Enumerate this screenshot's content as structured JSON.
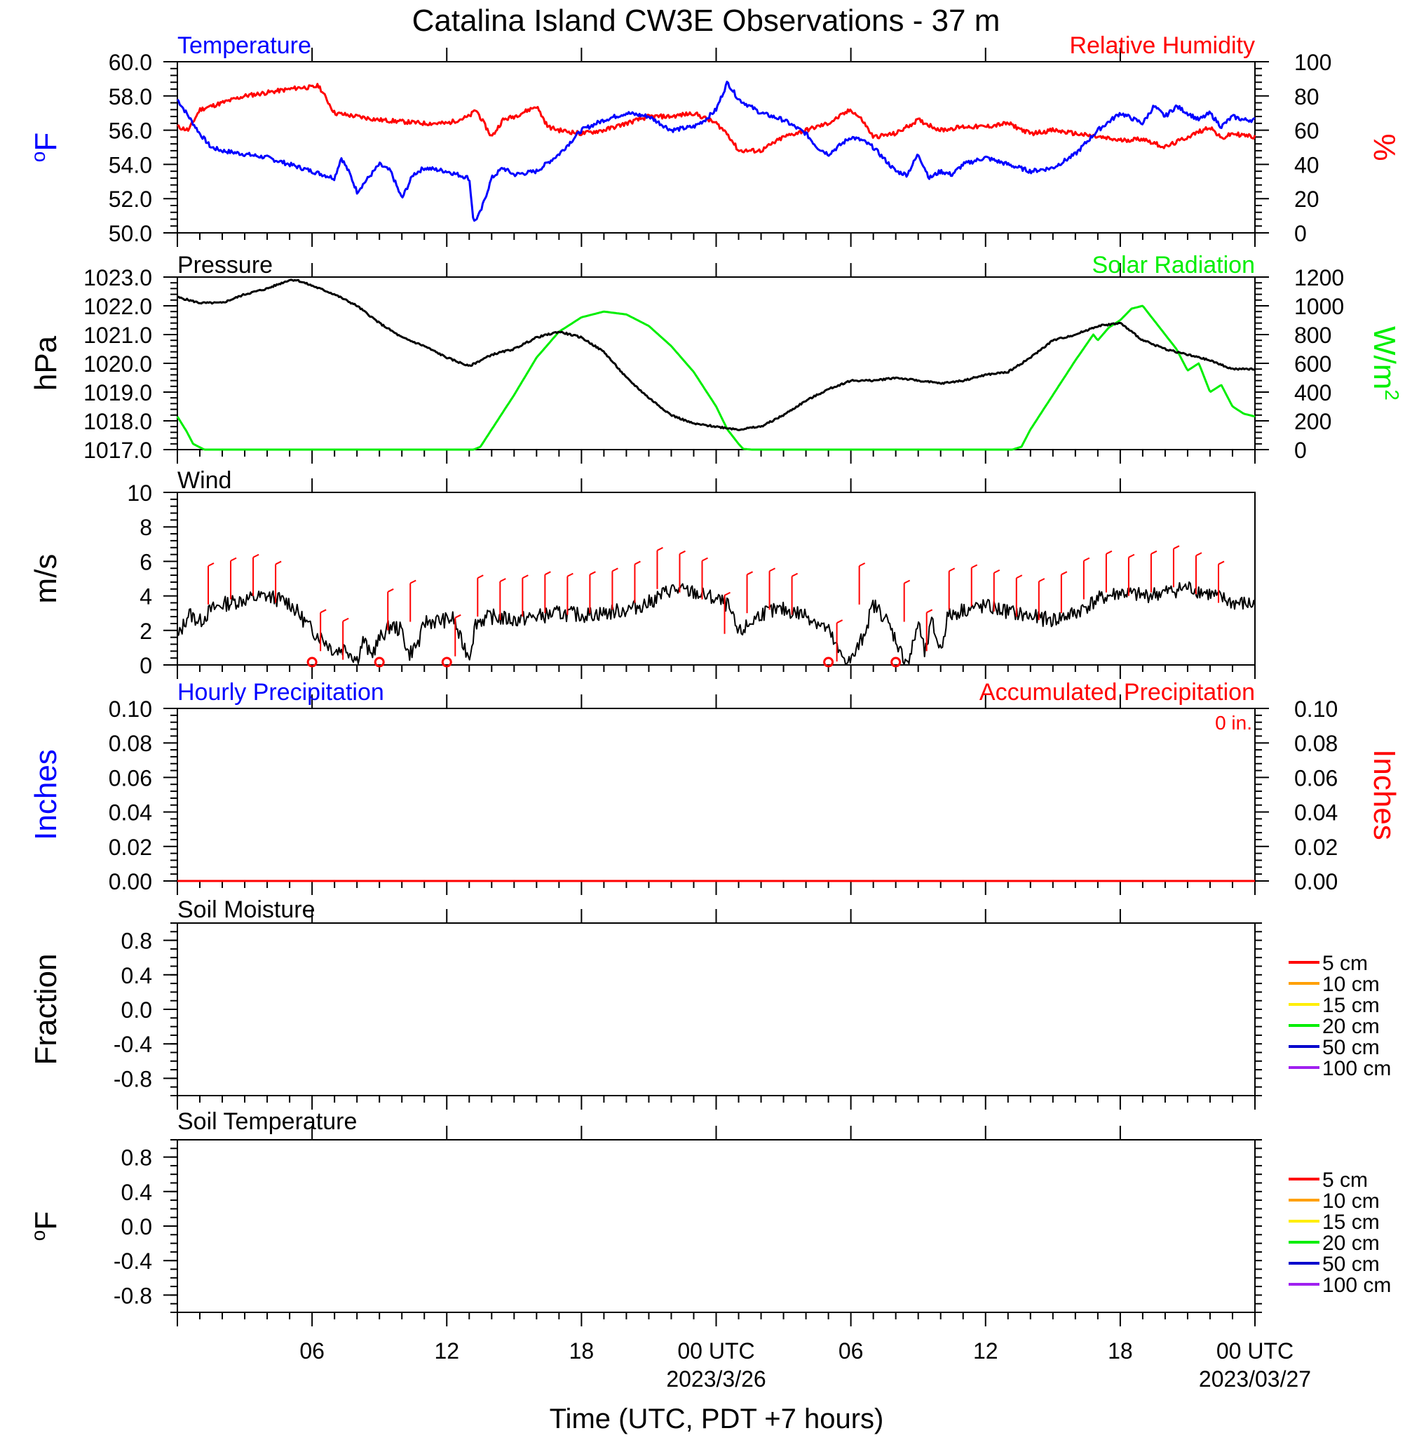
{
  "title": "Catalina Island CW3E Observations - 37 m",
  "xlabel": "Time (UTC, PDT +7 hours)",
  "x_ticks": [
    {
      "hour": 6,
      "label": "06",
      "date": ""
    },
    {
      "hour": 12,
      "label": "12",
      "date": ""
    },
    {
      "hour": 18,
      "label": "18",
      "date": ""
    },
    {
      "hour": 24,
      "label": "00 UTC",
      "date": "2023/3/26"
    },
    {
      "hour": 30,
      "label": "06",
      "date": ""
    },
    {
      "hour": 36,
      "label": "12",
      "date": ""
    },
    {
      "hour": 42,
      "label": "18",
      "date": ""
    },
    {
      "hour": 48,
      "label": "00 UTC",
      "date": "2023/03/27"
    }
  ],
  "colors": {
    "temperature": "#0000ff",
    "humidity": "#ff0000",
    "pressure": "#000000",
    "solar": "#00ee00",
    "wind_speed": "#000000",
    "wind_barb": "#ff0000",
    "hourly_precip": "#0000ff",
    "accum_precip": "#ff0000",
    "soil_5": "#ff0000",
    "soil_10": "#ffa000",
    "soil_15": "#ffee00",
    "soil_20": "#00ee00",
    "soil_50": "#0000cc",
    "soil_100": "#a020f0"
  },
  "chart_data": [
    {
      "type": "line",
      "panel": "temperature-humidity",
      "title_left": "Temperature",
      "title_right": "Relative Humidity",
      "ylabel_left": "oF",
      "ylabel_right": "%",
      "ylim_left": [
        50,
        60
      ],
      "ylim_right": [
        0,
        100
      ],
      "yticks_left": [
        "60.0",
        "58.0",
        "56.0",
        "54.0",
        "52.0",
        "50.0"
      ],
      "yticks_right": [
        "100",
        "80",
        "60",
        "40",
        "20",
        "0"
      ],
      "x_range": [
        0,
        48
      ],
      "series": [
        {
          "name": "Temperature",
          "axis": "left",
          "x": [
            0,
            0.5,
            1,
            1.5,
            2,
            3,
            4,
            5,
            6,
            6.5,
            7,
            7.3,
            7.7,
            8,
            8.5,
            9,
            9.5,
            10,
            10.5,
            11,
            12,
            12.5,
            13,
            13.2,
            13.5,
            14,
            14.5,
            15,
            16,
            17,
            18,
            19,
            20,
            21,
            22,
            23,
            23.5,
            24,
            24.5,
            25,
            25.5,
            26,
            27,
            28,
            28.5,
            29,
            30,
            30.5,
            31,
            32,
            32.5,
            33,
            33.5,
            34,
            34.5,
            35,
            36,
            37,
            38,
            39,
            40,
            41,
            42,
            43,
            43.5,
            44,
            44.5,
            45,
            45.5,
            46,
            46.5,
            47,
            47.5,
            48
          ],
          "values": [
            57.8,
            56.8,
            55.8,
            55,
            54.8,
            54.6,
            54.4,
            54,
            53.6,
            53.4,
            53.2,
            54.4,
            53.4,
            52.4,
            53.2,
            54,
            53.6,
            52,
            53.4,
            53.8,
            53.6,
            53.4,
            53.2,
            50.6,
            51.2,
            53.2,
            53.8,
            53.4,
            53.6,
            54.6,
            56,
            56.6,
            57,
            56.8,
            56,
            56.2,
            56.6,
            57.2,
            58.8,
            57.8,
            57.4,
            57,
            56.6,
            55.8,
            55,
            54.6,
            55.6,
            55.4,
            55,
            53.6,
            53.4,
            54.6,
            53.2,
            53.6,
            53.4,
            54,
            54.4,
            54,
            53.6,
            53.8,
            54.6,
            56,
            57,
            56.4,
            57.4,
            56.8,
            57.4,
            57,
            56.6,
            57,
            56.2,
            56.8,
            56.6,
            56.6
          ]
        },
        {
          "name": "Relative Humidity",
          "axis": "right",
          "x": [
            0,
            0.5,
            1,
            2,
            3,
            4,
            5,
            5.5,
            6,
            6.3,
            7,
            8,
            9,
            10,
            11,
            12,
            13,
            13.3,
            14,
            14.5,
            15,
            16,
            16.5,
            17,
            18,
            19,
            20,
            21,
            22,
            23,
            24,
            24.5,
            25,
            26,
            27,
            28,
            29,
            30,
            30.5,
            31,
            32,
            33,
            34,
            35,
            36,
            37,
            38,
            39,
            40,
            41,
            42,
            43,
            44,
            45,
            46,
            46.5,
            47,
            48
          ],
          "values": [
            62,
            60,
            72,
            76,
            80,
            82,
            84,
            85,
            85,
            86,
            70,
            68,
            66,
            65,
            64,
            64,
            68,
            72,
            56,
            66,
            68,
            74,
            62,
            60,
            58,
            60,
            64,
            68,
            68,
            70,
            64,
            58,
            48,
            48,
            56,
            60,
            64,
            72,
            66,
            56,
            58,
            66,
            60,
            62,
            62,
            64,
            58,
            60,
            58,
            56,
            54,
            55,
            50,
            56,
            62,
            55,
            58,
            56
          ]
        }
      ]
    },
    {
      "type": "line",
      "panel": "pressure-solar",
      "title_left": "Pressure",
      "title_right": "Solar Radiation",
      "ylabel_left": "hPa",
      "ylabel_right": "W/m",
      "ylabel_right_sup": "2",
      "ylim_left": [
        1017,
        1023
      ],
      "ylim_right": [
        0,
        1200
      ],
      "yticks_left": [
        "1023.0",
        "1022.0",
        "1021.0",
        "1020.0",
        "1019.0",
        "1018.0",
        "1017.0"
      ],
      "yticks_right": [
        "1200",
        "1000",
        "800",
        "600",
        "400",
        "200",
        "0"
      ],
      "x_range": [
        0,
        48
      ],
      "series": [
        {
          "name": "Pressure",
          "axis": "left",
          "x": [
            0,
            1,
            2,
            3,
            4,
            5,
            5.3,
            6,
            7,
            8,
            9,
            10,
            11,
            12,
            13,
            13.5,
            14,
            15,
            16,
            17,
            18,
            19,
            20,
            21,
            22,
            23,
            24,
            25,
            26,
            27,
            28,
            29,
            30,
            31,
            32,
            33,
            34,
            35,
            36,
            37,
            38,
            39,
            40,
            41,
            42,
            43,
            44,
            45,
            46,
            47,
            48
          ],
          "values": [
            1022.3,
            1022.1,
            1022.1,
            1022.4,
            1022.6,
            1022.9,
            1022.9,
            1022.7,
            1022.4,
            1022,
            1021.4,
            1020.9,
            1020.6,
            1020.2,
            1019.9,
            1020.1,
            1020.3,
            1020.5,
            1020.9,
            1021.1,
            1020.9,
            1020.4,
            1019.5,
            1018.8,
            1018.2,
            1017.9,
            1017.8,
            1017.7,
            1017.8,
            1018.2,
            1018.7,
            1019.1,
            1019.4,
            1019.4,
            1019.5,
            1019.4,
            1019.3,
            1019.4,
            1019.6,
            1019.7,
            1020.2,
            1020.8,
            1021,
            1021.3,
            1021.4,
            1020.8,
            1020.5,
            1020.3,
            1020.1,
            1019.8,
            1019.8
          ]
        },
        {
          "name": "Solar Radiation",
          "axis": "right",
          "x": [
            0,
            0.4,
            0.7,
            1.2,
            13.2,
            13.5,
            14,
            15,
            16,
            17,
            18,
            19,
            20,
            21,
            22,
            23,
            24,
            24.5,
            25,
            25.2,
            25.6,
            37.2,
            37.6,
            38,
            39,
            40,
            40.8,
            41,
            41.5,
            42,
            42.5,
            43,
            43.5,
            44,
            44.5,
            45,
            45.5,
            46,
            46.5,
            47,
            47.5,
            48
          ],
          "values": [
            230,
            130,
            40,
            0,
            0,
            20,
            140,
            380,
            640,
            820,
            920,
            960,
            940,
            860,
            720,
            540,
            300,
            140,
            40,
            5,
            0,
            0,
            20,
            140,
            380,
            620,
            800,
            760,
            850,
            900,
            980,
            1000,
            900,
            800,
            700,
            550,
            600,
            400,
            450,
            300,
            250,
            230
          ]
        }
      ]
    },
    {
      "type": "line",
      "panel": "wind",
      "title_left": "Wind",
      "ylabel_left": "m/s",
      "ylim_left": [
        0,
        10
      ],
      "yticks_left": [
        "10",
        "8",
        "6",
        "4",
        "2",
        "0"
      ],
      "x_range": [
        0,
        48
      ],
      "barb_hours": [
        2,
        3,
        4,
        5,
        6,
        7,
        8,
        9,
        10,
        11,
        12,
        13,
        14,
        15,
        16,
        17,
        18,
        19,
        20,
        21,
        22,
        23,
        24,
        25,
        26,
        27,
        28,
        29,
        30,
        31,
        32,
        33,
        34,
        35,
        36,
        37,
        38,
        39,
        40,
        41,
        42,
        43,
        44,
        45,
        46,
        47
      ],
      "calm_hours": [
        6,
        9,
        12,
        29,
        32
      ],
      "series": [
        {
          "name": "Wind Speed",
          "x": [
            0,
            0.5,
            1,
            1.5,
            2,
            3,
            4,
            5,
            5.5,
            6,
            6.5,
            7,
            7.5,
            8,
            8.3,
            8.6,
            9,
            9.5,
            10,
            10.3,
            10.8,
            11,
            12,
            12.3,
            12.6,
            13,
            13.3,
            14,
            15,
            16,
            17,
            18,
            19,
            20,
            21,
            22,
            23,
            24,
            24.5,
            25,
            26,
            27,
            28,
            28.5,
            29,
            29.5,
            30,
            30.5,
            31,
            31.5,
            32,
            32.3,
            32.6,
            33,
            33.3,
            33.6,
            34,
            34.3,
            35,
            36,
            37,
            38,
            39,
            40,
            41,
            42,
            43,
            44,
            45,
            46,
            47,
            48
          ],
          "values": [
            1.5,
            3,
            2.5,
            3.2,
            3.5,
            3.8,
            4,
            3.6,
            2.8,
            2,
            1.5,
            0.8,
            1,
            0.3,
            1.5,
            0.5,
            1.5,
            2.3,
            2,
            0.6,
            1.4,
            2.5,
            2.6,
            2.7,
            1.5,
            0.5,
            2.5,
            2.8,
            2.6,
            2.8,
            3,
            2.9,
            3,
            3.2,
            3.6,
            4.4,
            4.2,
            3.8,
            3.5,
            1.8,
            3,
            3.2,
            2.9,
            2.5,
            2,
            0.6,
            0.2,
            1.5,
            3.5,
            2.8,
            1.5,
            0.5,
            0.2,
            2.5,
            0.6,
            2.5,
            0.8,
            2.8,
            3.2,
            3.4,
            3.1,
            2.8,
            2.6,
            3,
            3.8,
            4.2,
            4,
            4.2,
            4.5,
            4.1,
            3.6,
            3.5
          ]
        }
      ]
    },
    {
      "type": "line",
      "panel": "precipitation",
      "title_left": "Hourly Precipitation",
      "title_right": "Accumulated Precipitation",
      "accumulated_total": "0 in.",
      "ylabel_left": "Inches",
      "ylabel_right": "Inches",
      "ylim_left": [
        0,
        0.1
      ],
      "ylim_right": [
        0,
        0.1
      ],
      "yticks_left": [
        "0.10",
        "0.08",
        "0.06",
        "0.04",
        "0.02",
        "0.00"
      ],
      "yticks_right": [
        "0.10",
        "0.08",
        "0.06",
        "0.04",
        "0.02",
        "0.00"
      ],
      "x_range": [
        0,
        48
      ],
      "series": [
        {
          "name": "Hourly Precipitation",
          "x": [
            0,
            48
          ],
          "values": [
            0,
            0
          ]
        },
        {
          "name": "Accumulated Precipitation",
          "x": [
            0,
            48
          ],
          "values": [
            0,
            0
          ]
        }
      ]
    },
    {
      "type": "line",
      "panel": "soil-moisture",
      "title_left": "Soil Moisture",
      "ylabel_left": "Fraction",
      "ylim_left": [
        -1,
        1
      ],
      "yticks_left": [
        "0.8",
        "0.4",
        "0.0",
        "-0.4",
        "-0.8"
      ],
      "legend": [
        "5 cm",
        "10 cm",
        "15 cm",
        "20 cm",
        "50 cm",
        "100 cm"
      ],
      "legend_position": "right",
      "series": []
    },
    {
      "type": "line",
      "panel": "soil-temperature",
      "title_left": "Soil Temperature",
      "ylabel_left": "oF",
      "ylim_left": [
        -1,
        1
      ],
      "yticks_left": [
        "0.8",
        "0.4",
        "0.0",
        "-0.4",
        "-0.8"
      ],
      "legend": [
        "5 cm",
        "10 cm",
        "15 cm",
        "20 cm",
        "50 cm",
        "100 cm"
      ],
      "legend_position": "right",
      "series": []
    }
  ]
}
